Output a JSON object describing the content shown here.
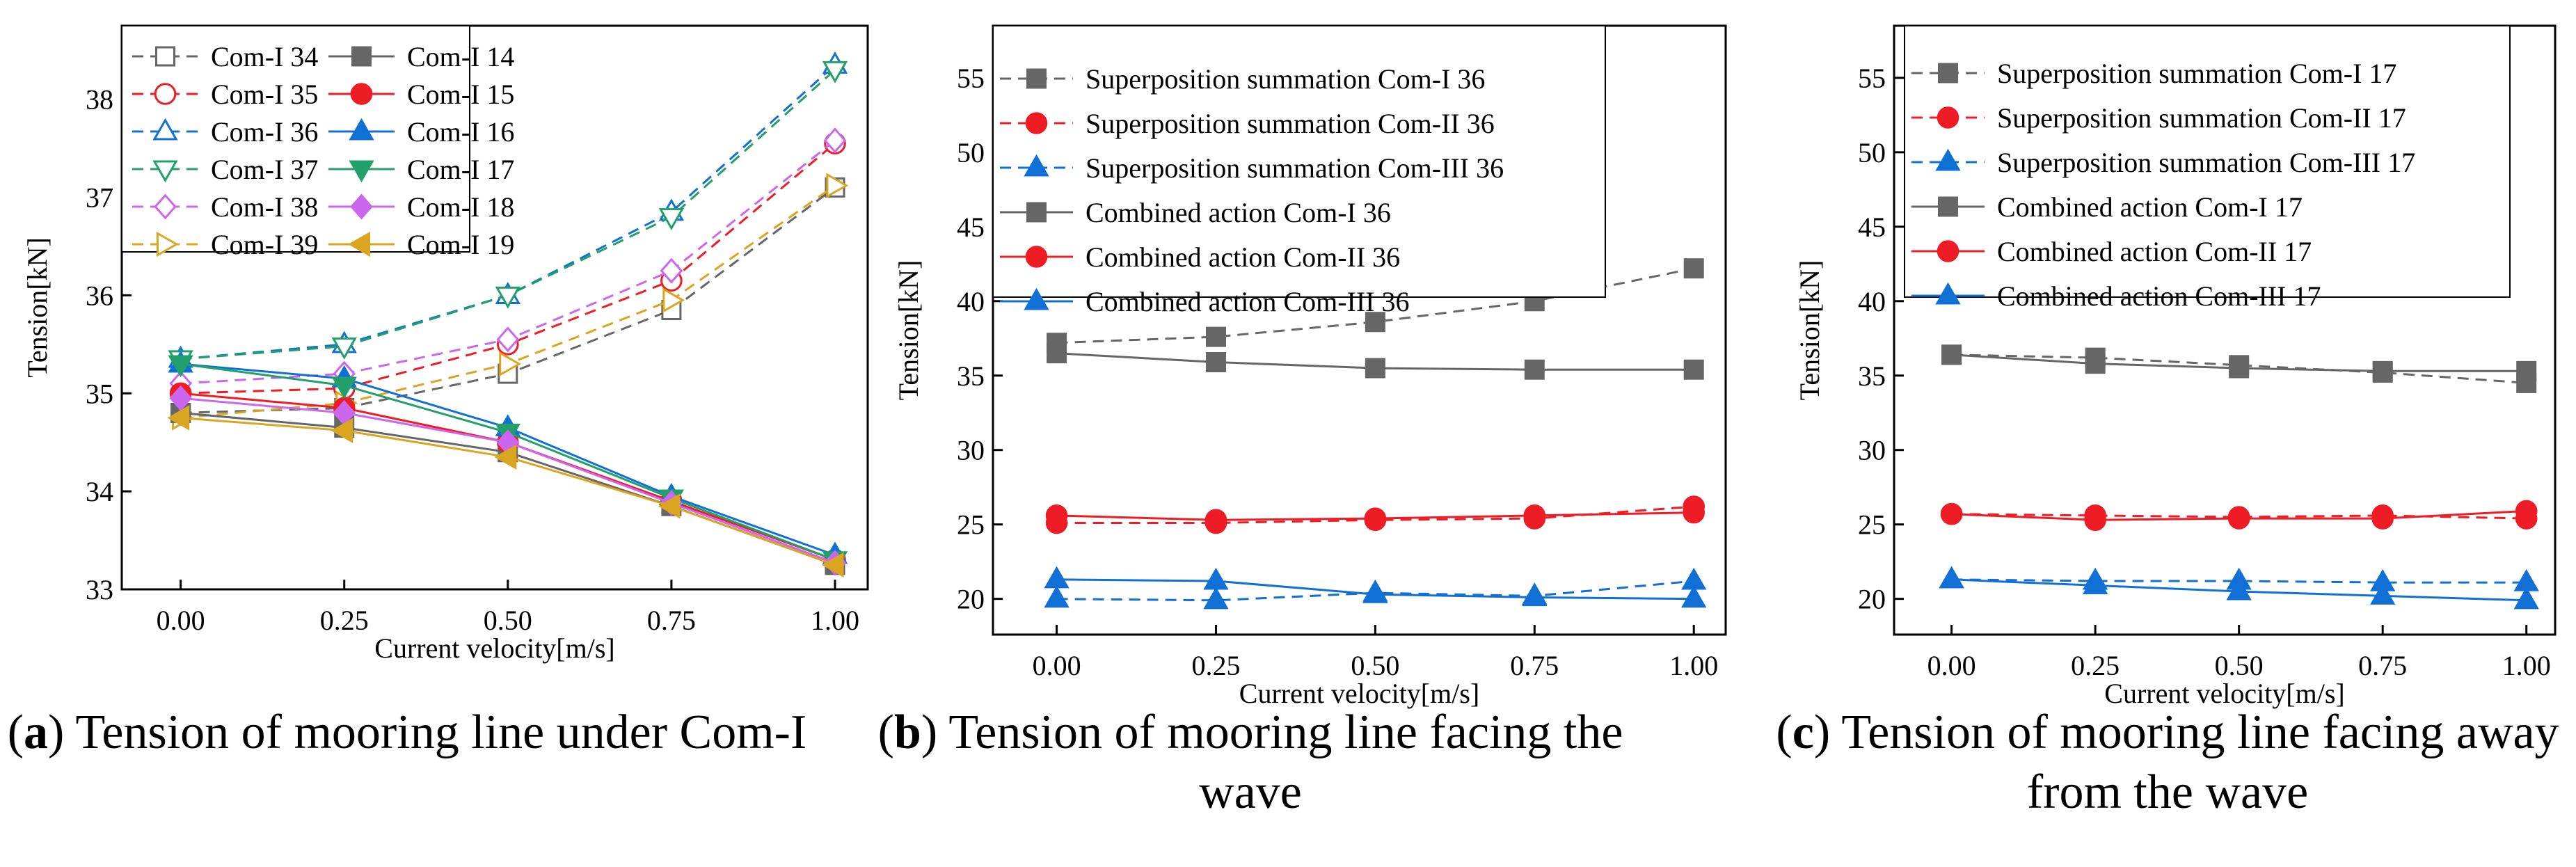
{
  "chart_data": [
    {
      "type": "line",
      "caption": {
        "letter": "a",
        "text": "Tension of mooring line under Com-I"
      },
      "xlabel": "Current velocity[m/s]",
      "ylabel": "Tension[kN]",
      "x": [
        0.0,
        0.25,
        0.5,
        0.75,
        1.0
      ],
      "x_ticks": [
        "0.00",
        "0.25",
        "0.50",
        "0.75",
        "1.00"
      ],
      "xlim": [
        -0.09,
        1.05
      ],
      "ylim": [
        33.0,
        38.75
      ],
      "y_ticks": [
        "33",
        "34",
        "35",
        "36",
        "37",
        "38"
      ],
      "legend_columns": 2,
      "series": [
        {
          "name": "Com-I 34",
          "color": "#666666",
          "dash": true,
          "marker": "square",
          "filled": false,
          "values": [
            34.8,
            34.85,
            35.2,
            35.85,
            37.1
          ]
        },
        {
          "name": "Com-I 35",
          "color": "#ee1c24",
          "dash": true,
          "marker": "circle",
          "filled": false,
          "values": [
            35.0,
            35.05,
            35.5,
            36.15,
            37.55
          ]
        },
        {
          "name": "Com-I 36",
          "color": "#1170d6",
          "dash": true,
          "marker": "triangle",
          "filled": false,
          "values": [
            35.35,
            35.5,
            36.0,
            36.85,
            38.35
          ]
        },
        {
          "name": "Com-I 37",
          "color": "#22a06b",
          "dash": true,
          "marker": "tridown",
          "filled": false,
          "values": [
            35.35,
            35.48,
            36.0,
            36.8,
            38.3
          ]
        },
        {
          "name": "Com-I 38",
          "color": "#cc66ee",
          "dash": true,
          "marker": "diamond",
          "filled": false,
          "values": [
            35.1,
            35.2,
            35.55,
            36.25,
            37.58
          ]
        },
        {
          "name": "Com-I 39",
          "color": "#daa520",
          "dash": true,
          "marker": "triright",
          "filled": false,
          "values": [
            34.75,
            34.9,
            35.3,
            35.95,
            37.12
          ]
        },
        {
          "name": "Com-I 14",
          "color": "#666666",
          "dash": false,
          "marker": "square",
          "filled": true,
          "values": [
            34.8,
            34.65,
            34.4,
            33.85,
            33.25
          ]
        },
        {
          "name": "Com-I 15",
          "color": "#ee1c24",
          "dash": false,
          "marker": "circle",
          "filled": true,
          "values": [
            35.0,
            34.85,
            34.5,
            33.9,
            33.3
          ]
        },
        {
          "name": "Com-I 16",
          "color": "#1170d6",
          "dash": false,
          "marker": "triangle",
          "filled": true,
          "values": [
            35.3,
            35.15,
            34.65,
            33.95,
            33.35
          ]
        },
        {
          "name": "Com-I 17",
          "color": "#22a06b",
          "dash": false,
          "marker": "tridown",
          "filled": true,
          "values": [
            35.3,
            35.08,
            34.6,
            33.93,
            33.3
          ]
        },
        {
          "name": "Com-I 18",
          "color": "#cc66ee",
          "dash": false,
          "marker": "diamond",
          "filled": true,
          "values": [
            34.95,
            34.8,
            34.5,
            33.88,
            33.27
          ]
        },
        {
          "name": "Com-I 19",
          "color": "#daa520",
          "dash": false,
          "marker": "trileft",
          "filled": true,
          "values": [
            34.75,
            34.62,
            34.35,
            33.85,
            33.25
          ]
        }
      ]
    },
    {
      "type": "line",
      "caption": {
        "letter": "b",
        "text": "Tension of mooring line facing the wave"
      },
      "xlabel": "Current velocity[m/s]",
      "ylabel": "Tension[kN]",
      "x": [
        0.0,
        0.25,
        0.5,
        0.75,
        1.0
      ],
      "x_ticks": [
        "0.00",
        "0.25",
        "0.50",
        "0.75",
        "1.00"
      ],
      "xlim": [
        -0.1,
        1.05
      ],
      "ylim": [
        17.6,
        58.5
      ],
      "y_ticks": [
        "20",
        "25",
        "30",
        "35",
        "40",
        "45",
        "50",
        "55"
      ],
      "legend_columns": 1,
      "series": [
        {
          "name": "Superposition summation Com-I 36",
          "color": "#666666",
          "dash": true,
          "marker": "square",
          "filled": true,
          "values": [
            37.2,
            37.6,
            38.6,
            40.0,
            42.2
          ]
        },
        {
          "name": "Superposition summation Com-II 36",
          "color": "#ee1c24",
          "dash": true,
          "marker": "circle",
          "filled": true,
          "values": [
            25.1,
            25.1,
            25.3,
            25.4,
            26.2
          ]
        },
        {
          "name": "Superposition summation Com-III 36",
          "color": "#1170d6",
          "dash": true,
          "marker": "triangle",
          "filled": true,
          "values": [
            20.0,
            19.9,
            20.4,
            20.2,
            21.2
          ]
        },
        {
          "name": "Combined action Com-I 36",
          "color": "#666666",
          "dash": false,
          "marker": "square",
          "filled": true,
          "values": [
            36.5,
            35.9,
            35.5,
            35.4,
            35.4
          ]
        },
        {
          "name": "Combined action Com-II 36",
          "color": "#ee1c24",
          "dash": false,
          "marker": "circle",
          "filled": true,
          "values": [
            25.6,
            25.3,
            25.4,
            25.6,
            25.8
          ]
        },
        {
          "name": "Combined action Com-III 36",
          "color": "#1170d6",
          "dash": false,
          "marker": "triangle",
          "filled": true,
          "values": [
            21.3,
            21.2,
            20.3,
            20.1,
            20.0
          ]
        }
      ]
    },
    {
      "type": "line",
      "caption": {
        "letter": "c",
        "text": "Tension of mooring line facing away from the wave"
      },
      "xlabel": "Current velocity[m/s]",
      "ylabel": "Tension[kN]",
      "x": [
        0.0,
        0.25,
        0.5,
        0.75,
        1.0
      ],
      "x_ticks": [
        "0.00",
        "0.25",
        "0.50",
        "0.75",
        "1.00"
      ],
      "xlim": [
        -0.1,
        1.05
      ],
      "ylim": [
        17.6,
        58.5
      ],
      "y_ticks": [
        "20",
        "25",
        "30",
        "35",
        "40",
        "45",
        "50",
        "55"
      ],
      "legend_columns": 1,
      "series": [
        {
          "name": "Superposition summation Com-I 17",
          "color": "#666666",
          "dash": true,
          "marker": "square",
          "filled": true,
          "values": [
            36.4,
            36.2,
            35.7,
            35.2,
            34.5
          ]
        },
        {
          "name": "Superposition summation Com-II 17",
          "color": "#ee1c24",
          "dash": true,
          "marker": "circle",
          "filled": true,
          "values": [
            25.7,
            25.6,
            25.5,
            25.6,
            25.4
          ]
        },
        {
          "name": "Superposition summation Com-III 17",
          "color": "#1170d6",
          "dash": true,
          "marker": "triangle",
          "filled": true,
          "values": [
            21.3,
            21.2,
            21.2,
            21.1,
            21.1
          ]
        },
        {
          "name": "Combined action Com-I 17",
          "color": "#666666",
          "dash": false,
          "marker": "square",
          "filled": true,
          "values": [
            36.4,
            35.8,
            35.5,
            35.3,
            35.3
          ]
        },
        {
          "name": "Combined action Com-II 17",
          "color": "#ee1c24",
          "dash": false,
          "marker": "circle",
          "filled": true,
          "values": [
            25.7,
            25.3,
            25.4,
            25.4,
            25.9
          ]
        },
        {
          "name": "Combined action Com-III 17",
          "color": "#1170d6",
          "dash": false,
          "marker": "triangle",
          "filled": true,
          "values": [
            21.3,
            20.9,
            20.5,
            20.2,
            19.9
          ]
        }
      ]
    }
  ]
}
